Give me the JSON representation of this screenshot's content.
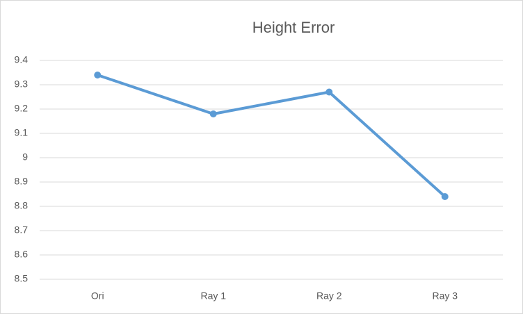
{
  "chart_data": {
    "type": "line",
    "title": "Height Error",
    "categories": [
      "Ori",
      "Ray 1",
      "Ray 2",
      "Ray 3"
    ],
    "values": [
      9.34,
      9.18,
      9.27,
      8.84
    ],
    "color": "#5b9bd5",
    "ylim": [
      8.5,
      9.4
    ],
    "yticks": [
      8.5,
      8.6,
      8.7,
      8.8,
      8.9,
      9,
      9.1,
      9.2,
      9.3,
      9.4
    ],
    "grid": true
  }
}
